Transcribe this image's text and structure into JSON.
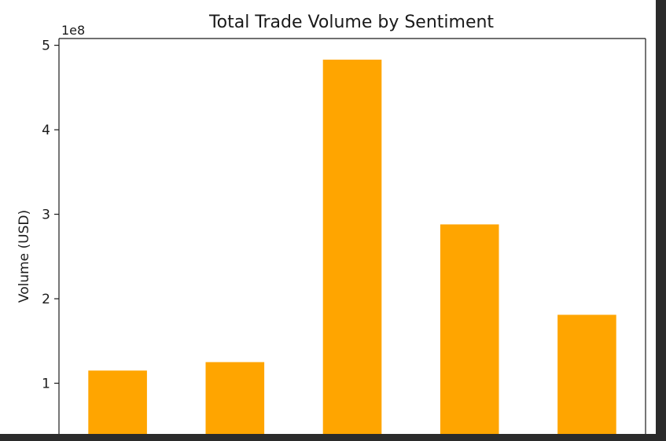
{
  "chart_data": {
    "type": "bar",
    "title": "Total Trade Volume by Sentiment",
    "xlabel": "",
    "ylabel": "Volume (USD)",
    "y_offset_label": "1e8",
    "ylim": [
      0.4,
      5.08
    ],
    "yticks": [
      1,
      2,
      3,
      4,
      5
    ],
    "ytick_labels": [
      "1",
      "2",
      "3",
      "4",
      "5"
    ],
    "categories": [
      "",
      "",
      "",
      "",
      ""
    ],
    "values": [
      1.15,
      1.25,
      4.83,
      2.88,
      1.81
    ],
    "bar_color": "#ffa500",
    "grid": false
  },
  "colors": {
    "background_outer": "#2b2b2b",
    "plot_background": "#ffffff",
    "axes": "#1a1a1a"
  }
}
